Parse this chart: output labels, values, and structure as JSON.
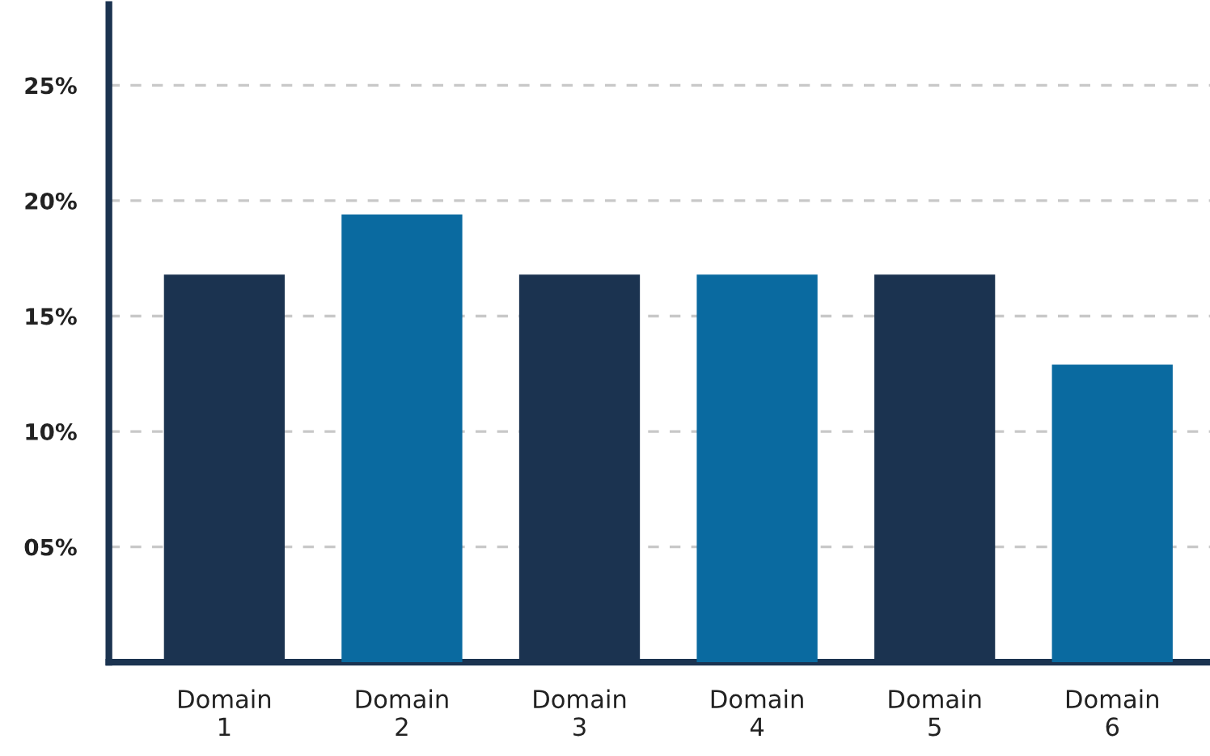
{
  "chart_data": {
    "type": "bar",
    "categories": [
      "Domain\n1",
      "Domain\n2",
      "Domain\n3",
      "Domain\n4",
      "Domain\n5",
      "Domain\n6"
    ],
    "values": [
      16.8,
      19.4,
      16.8,
      16.8,
      16.8,
      12.9
    ],
    "colors": [
      "#1b3350",
      "#0a6aa0",
      "#1b3350",
      "#0a6aa0",
      "#1b3350",
      "#0a6aa0"
    ],
    "ylim": [
      0,
      28.5
    ],
    "yticks": [
      {
        "value": 5,
        "label": "05%"
      },
      {
        "value": 10,
        "label": "10%"
      },
      {
        "value": 15,
        "label": "15%"
      },
      {
        "value": 20,
        "label": "20%"
      },
      {
        "value": 25,
        "label": "25%"
      }
    ],
    "grid": "y",
    "legend": false
  }
}
